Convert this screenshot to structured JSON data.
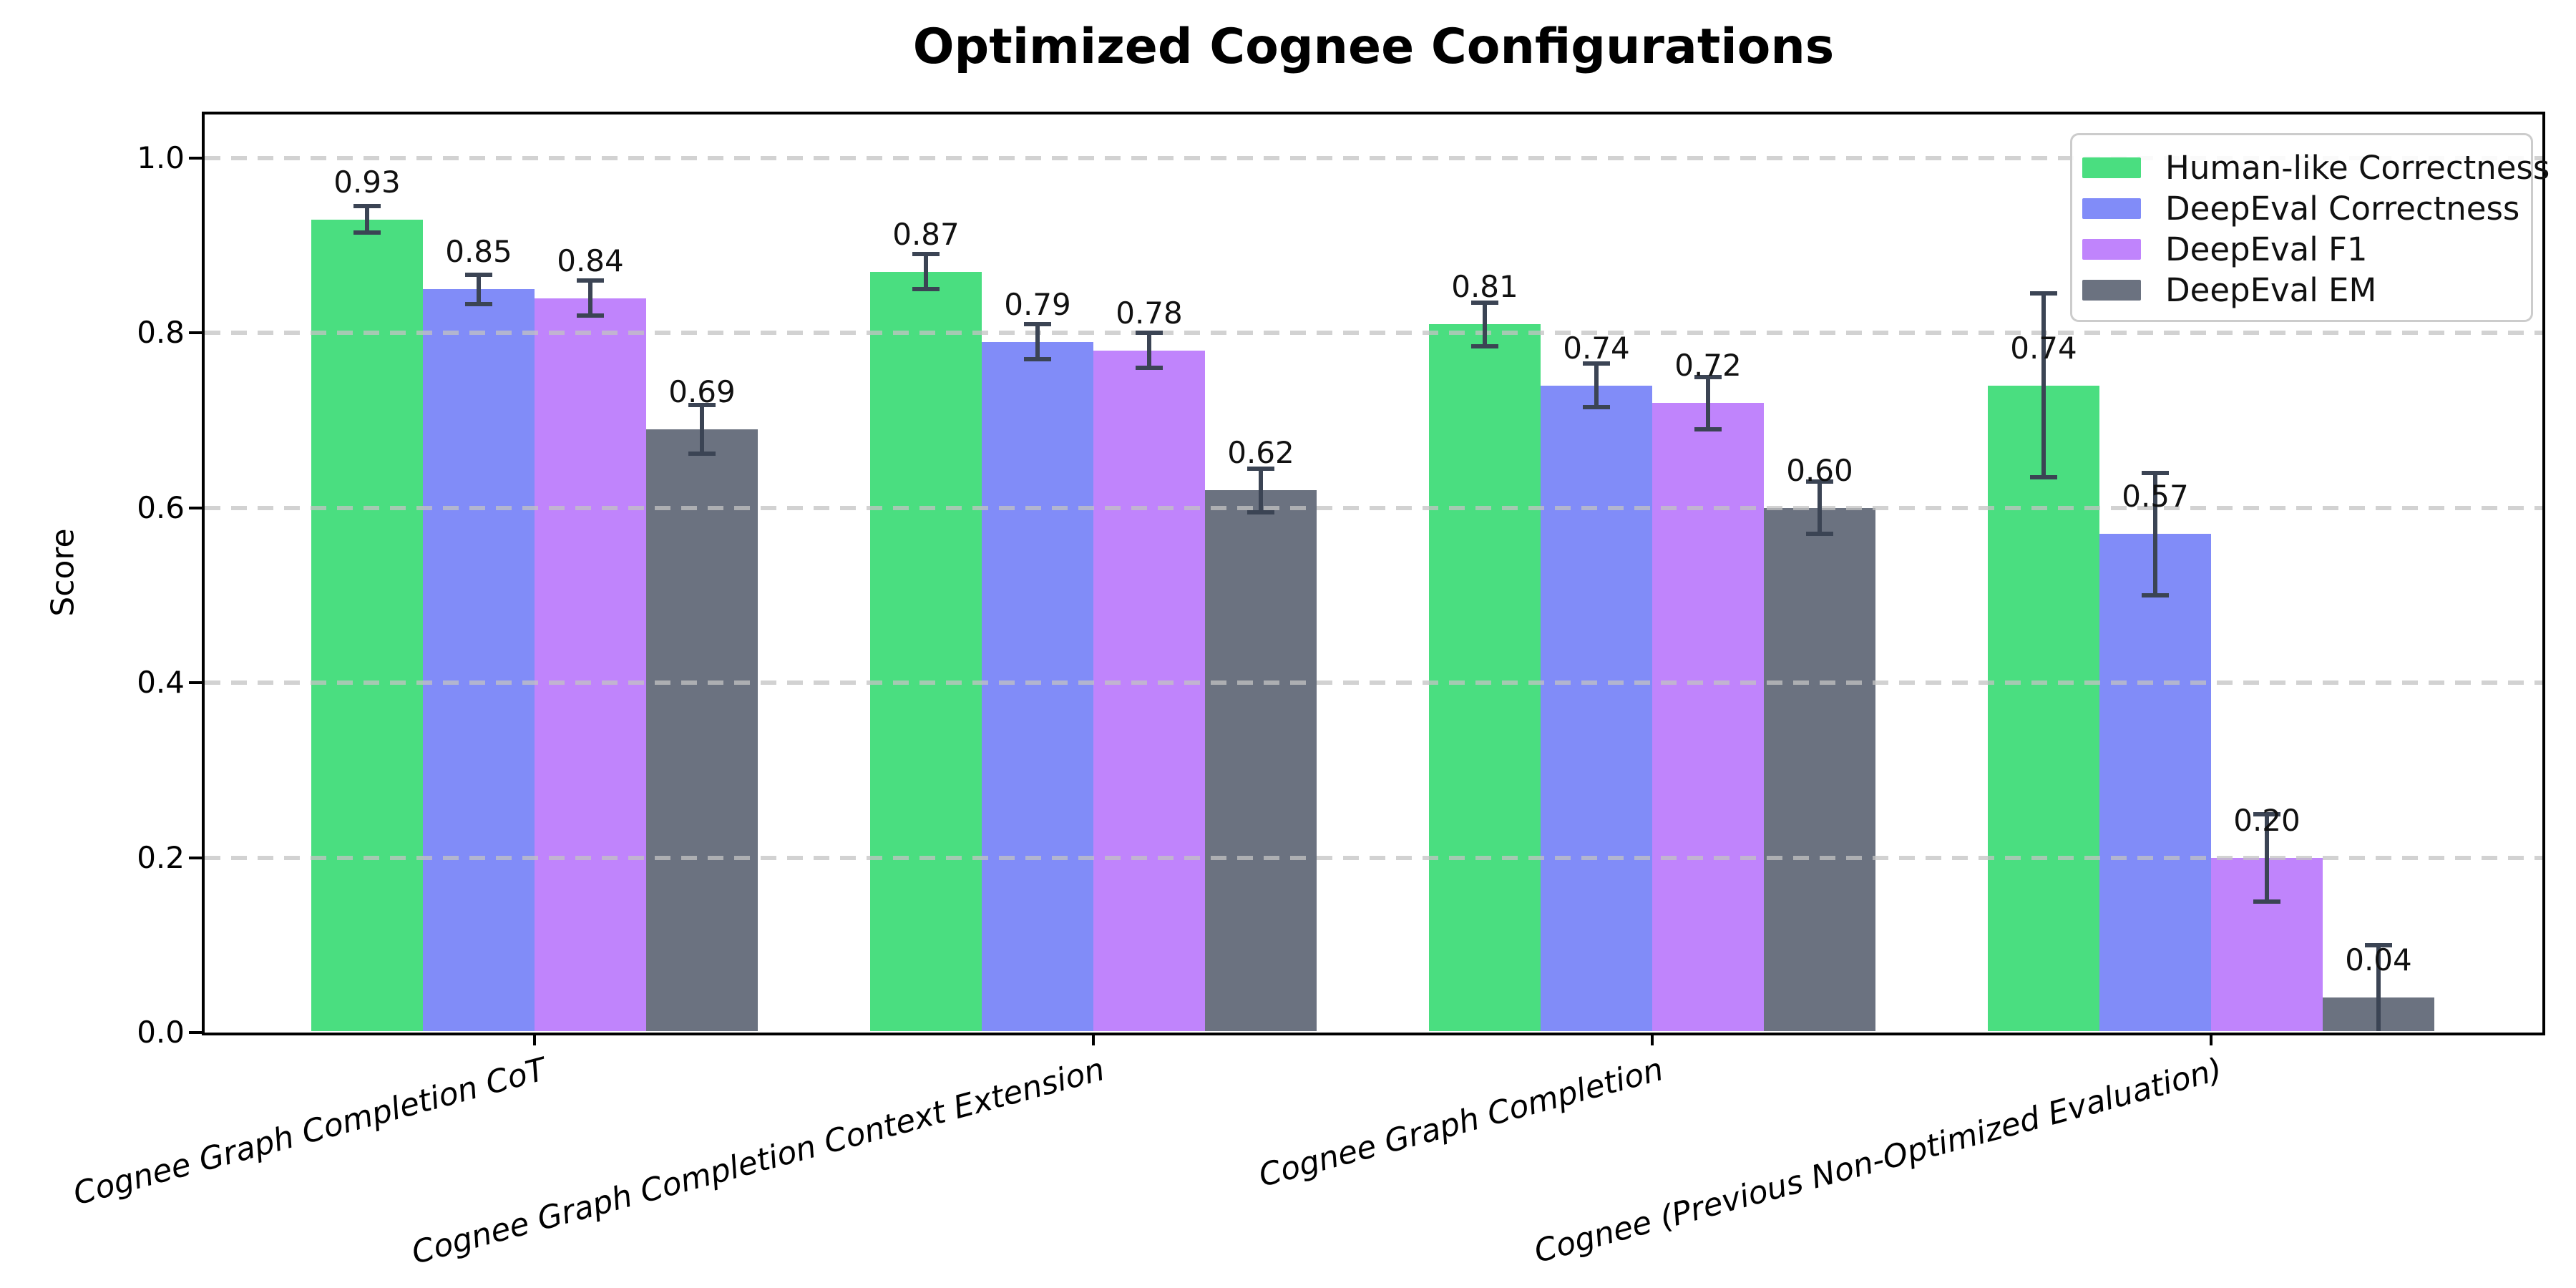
{
  "chart_data": {
    "type": "bar",
    "title": "Optimized Cognee Configurations",
    "ylabel": "Score",
    "xlabel": "",
    "ylim": [
      0,
      1.05
    ],
    "grid": {
      "axis": "y",
      "style": "dashed",
      "color": "#d3d3d3",
      "over_bars": true
    },
    "yticks": [
      {
        "value": 0.0,
        "label": "0.0"
      },
      {
        "value": 0.2,
        "label": "0.2"
      },
      {
        "value": 0.4,
        "label": "0.4"
      },
      {
        "value": 0.6,
        "label": "0.6"
      },
      {
        "value": 0.8,
        "label": "0.8"
      },
      {
        "value": 1.0,
        "label": "1.0"
      }
    ],
    "categories": [
      "Cognee Graph Completion CoT",
      "Cognee Graph Completion Context Extension",
      "Cognee Graph Completion",
      "Cognee (Previous Non-Optimized Evaluation)"
    ],
    "series": [
      {
        "name": "Human-like Correctness",
        "color": "#4ade80",
        "values": [
          0.93,
          0.87,
          0.81,
          0.74
        ],
        "errors": [
          0.015,
          0.02,
          0.025,
          0.105
        ],
        "labels": [
          "0.93",
          "0.87",
          "0.81",
          "0.74"
        ]
      },
      {
        "name": "DeepEval Correctness",
        "color": "#818cf8",
        "values": [
          0.85,
          0.79,
          0.74,
          0.57
        ],
        "errors": [
          0.017,
          0.02,
          0.025,
          0.07
        ],
        "labels": [
          "0.85",
          "0.79",
          "0.74",
          "0.57"
        ]
      },
      {
        "name": "DeepEval F1",
        "color": "#c084fc",
        "values": [
          0.84,
          0.78,
          0.72,
          0.2
        ],
        "errors": [
          0.02,
          0.02,
          0.03,
          0.05
        ],
        "labels": [
          "0.84",
          "0.78",
          "0.72",
          "0.20"
        ]
      },
      {
        "name": "DeepEval EM",
        "color": "#6b7280",
        "values": [
          0.69,
          0.62,
          0.6,
          0.04
        ],
        "errors": [
          0.028,
          0.025,
          0.03,
          0.06
        ],
        "labels": [
          "0.69",
          "0.62",
          "0.60",
          "0.04"
        ]
      }
    ],
    "error_bar_color": "#3b4454",
    "legend": {
      "position": "upper right",
      "entries": [
        "Human-like Correctness",
        "DeepEval Correctness",
        "DeepEval F1",
        "DeepEval EM"
      ]
    }
  }
}
